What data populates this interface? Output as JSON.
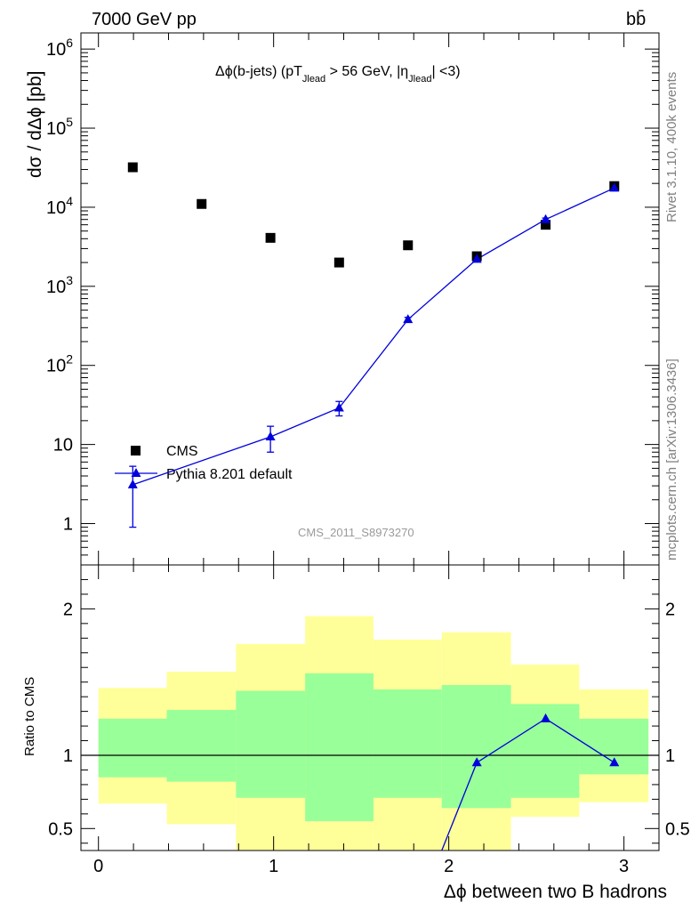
{
  "header": {
    "energy": "7000 GeV pp",
    "process": "bb̄"
  },
  "side_labels": {
    "rivet": "Rivet 3.1.10,  400k events",
    "mcplots": "mcplots.cern.ch [arXiv:1306.3436]"
  },
  "chart_data": {
    "type": "scatter",
    "title": "Δϕ(b-jets) (pT_Jlead >  56 GeV, |η_Jlead| <3)",
    "title_parts": {
      "t1": "Δϕ(b-jets) (pT",
      "s1": "Jlead",
      "t2": " >  56 GeV, |η",
      "s2": "Jlead",
      "t3": "| <3)"
    },
    "xlabel": "Δϕ between two B hadrons",
    "ylabel": "dσ / dΔϕ [pb]",
    "ratio_ylabel": "Ratio to CMS",
    "analysis_id": "CMS_2011_S8973270",
    "xlim": [
      -0.1,
      3.2
    ],
    "ylim": [
      0.3,
      1600000
    ],
    "yscale": "log",
    "ratio_ylim": [
      0.35,
      2.3
    ],
    "x_ticks": [
      "0",
      "1",
      "2",
      "3"
    ],
    "y_ticks": [
      {
        "value": 1,
        "base": "1",
        "exp": ""
      },
      {
        "value": 10,
        "base": "10",
        "exp": ""
      },
      {
        "value": 100,
        "base": "10",
        "exp": "2"
      },
      {
        "value": 1000,
        "base": "10",
        "exp": "3"
      },
      {
        "value": 10000,
        "base": "10",
        "exp": "4"
      },
      {
        "value": 100000,
        "base": "10",
        "exp": "5"
      },
      {
        "value": 1000000,
        "base": "10",
        "exp": "6"
      }
    ],
    "ratio_ticks": [
      "0.5",
      "1",
      "2"
    ],
    "bin_edges": [
      0,
      0.39,
      0.785,
      1.18,
      1.57,
      1.96,
      2.355,
      2.745,
      3.14
    ],
    "legend": [
      {
        "label": "CMS",
        "marker": "square",
        "color": "#000000"
      },
      {
        "label": "Pythia 8.201 default",
        "marker": "triangle",
        "color": "#0000dd"
      }
    ],
    "series": [
      {
        "name": "CMS",
        "x": [
          0.196,
          0.589,
          0.982,
          1.374,
          1.767,
          2.16,
          2.553,
          2.945
        ],
        "y": [
          32000,
          11000,
          4100,
          2000,
          3300,
          2400,
          6000,
          18500
        ]
      },
      {
        "name": "Pythia 8.201 default",
        "x": [
          0.196,
          0.982,
          1.374,
          1.767,
          2.16,
          2.553,
          2.945
        ],
        "y": [
          3.1,
          12.5,
          29,
          380,
          2200,
          7000,
          17500
        ],
        "y_err_low": [
          2.2,
          4.5,
          6,
          25,
          120,
          300,
          600
        ],
        "y_err_high": [
          2.2,
          4.5,
          6,
          25,
          120,
          300,
          600
        ]
      }
    ],
    "ratio": {
      "x": [
        1.96,
        2.16,
        2.553,
        2.945
      ],
      "y": [
        0.35,
        0.95,
        1.25,
        0.95
      ]
    },
    "bands": {
      "inner_low": [
        0.85,
        0.82,
        0.71,
        0.55,
        0.71,
        0.64,
        0.71,
        0.87
      ],
      "inner_high": [
        1.25,
        1.31,
        1.44,
        1.56,
        1.45,
        1.48,
        1.35,
        1.25
      ],
      "outer_low": [
        0.67,
        0.53,
        0.35,
        0.35,
        0.35,
        0.35,
        0.58,
        0.68
      ],
      "outer_high": [
        1.46,
        1.57,
        1.76,
        1.95,
        1.79,
        1.84,
        1.62,
        1.45
      ]
    },
    "colors": {
      "outer_band": "#ffff99",
      "inner_band": "#99ff99",
      "mc": "#0000dd",
      "data": "#000000",
      "frame": "#000000"
    }
  }
}
